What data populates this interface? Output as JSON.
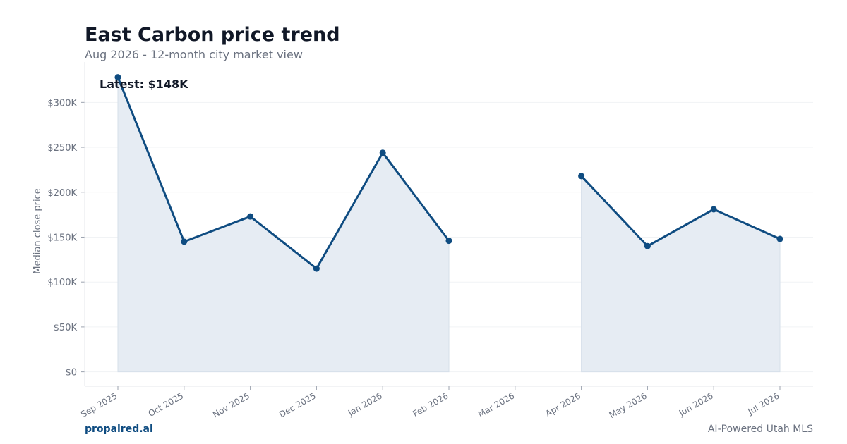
{
  "chart_data": {
    "type": "area",
    "title": "East Carbon price trend",
    "subtitle": "Aug 2026 - 12-month city market view",
    "xlabel": "",
    "ylabel": "Median close price",
    "categories": [
      "Sep 2025",
      "Oct 2025",
      "Nov 2025",
      "Dec 2025",
      "Jan 2026",
      "Feb 2026",
      "Mar 2026",
      "Apr 2026",
      "May 2026",
      "Jun 2026",
      "Jul 2026"
    ],
    "series": [
      {
        "values": [
          328000,
          145000,
          173000,
          115000,
          244000,
          146000,
          null,
          218000,
          140000,
          181000,
          148000
        ]
      }
    ],
    "ylim": [
      -16000,
      345000
    ],
    "yticks": [
      0,
      50000,
      100000,
      150000,
      200000,
      250000,
      300000
    ],
    "ytick_labels": [
      "$0",
      "$50K",
      "$100K",
      "$150K",
      "$200K",
      "$250K",
      "$300K"
    ],
    "annotation": "Latest: $148K",
    "grid": true,
    "legend": "none",
    "colors": {
      "line": "#0f4c81",
      "fill": "#e5ebf2",
      "grid": "#f1f3f5",
      "axis": "#e5e7eb",
      "tick_text": "#6b7280",
      "title": "#111827"
    }
  },
  "footer": {
    "brand": "propaired.ai",
    "tagline": "AI-Powered Utah MLS"
  }
}
